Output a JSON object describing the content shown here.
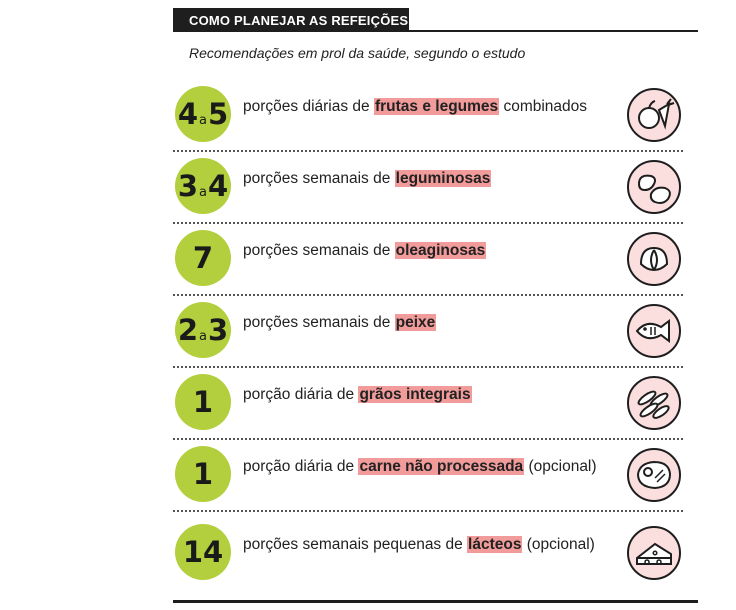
{
  "header": {
    "title": "COMO PLANEJAR AS REFEIÇÕES"
  },
  "subtitle": "Recomendações em prol da saúde, segundo o estudo",
  "rows": [
    {
      "num_a": "4",
      "sep": "a",
      "num_b": "5",
      "pre": "porções diárias de ",
      "hl": "frutas e legumes",
      "post": " combinados",
      "icon": "fruits-vegetables-icon"
    },
    {
      "num_a": "3",
      "sep": "a",
      "num_b": "4",
      "pre": "porções semanais de ",
      "hl": "leguminosas",
      "post": "",
      "icon": "beans-icon"
    },
    {
      "num_a": "7",
      "sep": "",
      "num_b": "",
      "pre": "porções semanais de ",
      "hl": "oleaginosas",
      "post": "",
      "icon": "nut-icon"
    },
    {
      "num_a": "2",
      "sep": "a",
      "num_b": "3",
      "pre": "porções semanais de ",
      "hl": "peixe",
      "post": "",
      "icon": "fish-icon"
    },
    {
      "num_a": "1",
      "sep": "",
      "num_b": "",
      "pre": "porção diária de ",
      "hl": "grãos integrais",
      "post": "",
      "icon": "grains-icon"
    },
    {
      "num_a": "1",
      "sep": "",
      "num_b": "",
      "pre": "porção diária de ",
      "hl": "carne não processada",
      "post": " (opcional)",
      "icon": "steak-icon"
    },
    {
      "num_a": "14",
      "sep": "",
      "num_b": "",
      "pre": "porções semanais pequenas de ",
      "hl": "lácteos",
      "post": " (opcional)",
      "icon": "cheese-icon"
    }
  ],
  "colors": {
    "badge": "#b3cf3e",
    "highlight": "#f29b9b",
    "icon_bg": "#fbdede",
    "dark": "#1e1e1e"
  }
}
